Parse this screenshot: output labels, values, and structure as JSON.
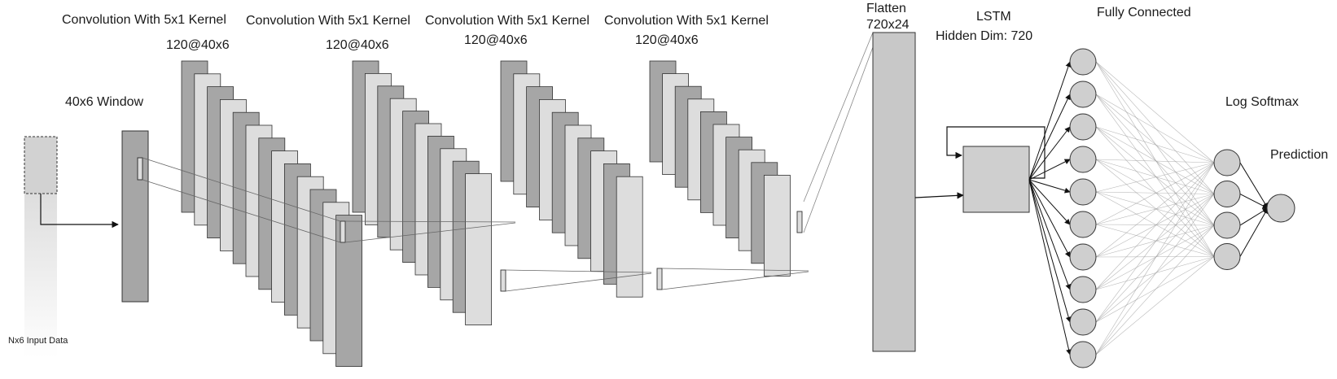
{
  "labels": {
    "input_data": "Nx6 Input Data",
    "window": "40x6 Window",
    "conv_titles": [
      "Convolution With 5x1 Kernel",
      "Convolution With 5x1 Kernel",
      "Convolution With 5x1 Kernel",
      "Convolution With 5x1 Kernel"
    ],
    "conv_dims": [
      "120@40x6",
      "120@40x6",
      "120@40x6",
      "120@40x6"
    ],
    "flatten_title": "Flatten",
    "flatten_dims": "720x24",
    "lstm_title": "LSTM",
    "lstm_hidden": "Hidden Dim: 720",
    "fully_connected": "Fully Connected",
    "log_softmax": "Log Softmax",
    "prediction": "Prediction"
  },
  "network": {
    "conv_feature_maps_per_stack": [
      13,
      10,
      10,
      10
    ],
    "fc_hidden_nodes": 10,
    "softmax_nodes": 4,
    "output_nodes": 1
  },
  "colors": {
    "dark_map": "#a6a6a6",
    "light_map": "#dddddd",
    "flatten": "#c8c8c8",
    "node": "#cfcfcf",
    "stroke": "#333333",
    "link": "#9a9a9a"
  }
}
